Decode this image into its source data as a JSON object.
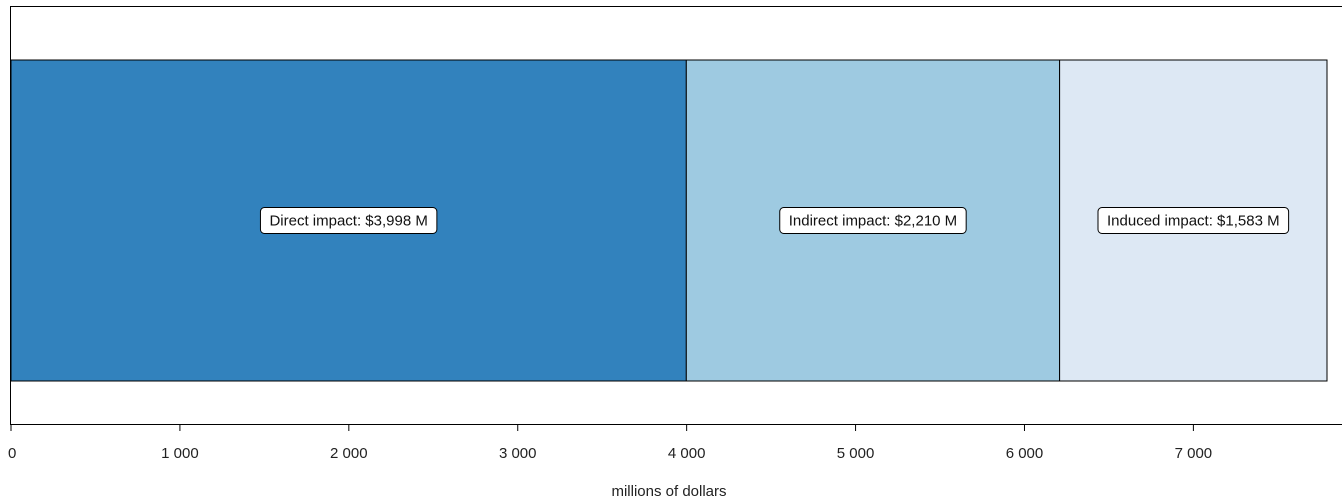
{
  "chart_data": {
    "type": "bar",
    "orientation": "horizontal-stacked",
    "categories": [
      "Direct impact",
      "Indirect impact",
      "Induced impact"
    ],
    "values": [
      3998,
      2210,
      1583
    ],
    "colors": [
      "#3282bd",
      "#9ecae1",
      "#dde8f4"
    ],
    "labels": [
      "Direct impact: $3,998 M",
      "Indirect impact: $2,210 M",
      "Induced impact: $1,583 M"
    ],
    "xlabel": "millions of dollars",
    "xlim": [
      0,
      7791
    ],
    "xticks": [
      0,
      1000,
      2000,
      3000,
      4000,
      5000,
      6000,
      7000
    ],
    "xtick_labels": [
      "0",
      "1 000",
      "2 000",
      "3 000",
      "4 000",
      "5 000",
      "6 000",
      "7 000"
    ],
    "grid": false
  }
}
